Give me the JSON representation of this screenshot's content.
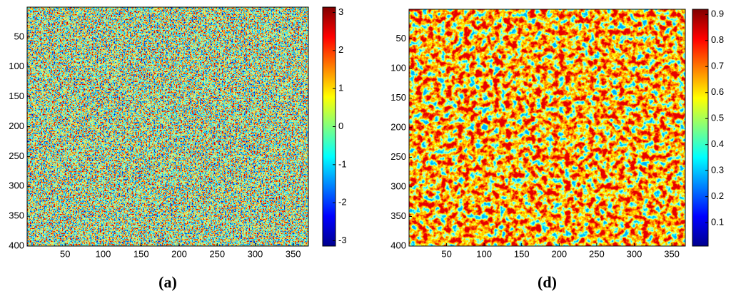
{
  "chart_data": [
    {
      "type": "heatmap",
      "caption": "(a)",
      "colormap": "jet",
      "xlim": [
        0,
        370
      ],
      "xticks": [
        50,
        100,
        150,
        200,
        250,
        300,
        350
      ],
      "ylim": [
        400,
        0
      ],
      "yticks": [
        50,
        100,
        150,
        200,
        250,
        300,
        350,
        400
      ],
      "colorbar": {
        "lim": [
          -3.14,
          3.14
        ],
        "ticks": [
          -3,
          -2,
          -1,
          0,
          1,
          2,
          3
        ]
      }
    },
    {
      "type": "heatmap",
      "caption": "(d)",
      "colormap": "jet",
      "xlim": [
        0,
        368
      ],
      "xticks": [
        50,
        100,
        150,
        200,
        250,
        300,
        350
      ],
      "ylim": [
        400,
        0
      ],
      "yticks": [
        50,
        100,
        150,
        200,
        250,
        300,
        350,
        400
      ],
      "colorbar": {
        "lim": [
          0.01,
          0.92
        ],
        "ticks": [
          0.1,
          0.2,
          0.3,
          0.4,
          0.5,
          0.6,
          0.7,
          0.8,
          0.9
        ]
      }
    }
  ]
}
